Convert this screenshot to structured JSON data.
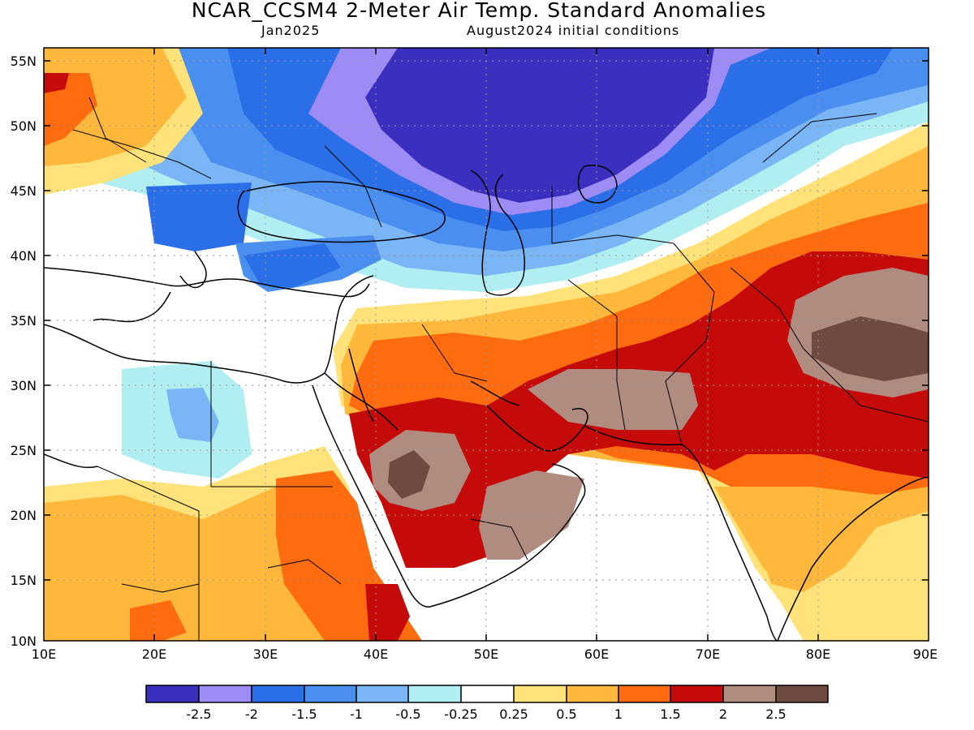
{
  "title": "NCAR_CCSM4 2-Meter Air Temp. Standard Anomalies",
  "subtitle_left": "Jan2025",
  "subtitle_right": "August2024 initial conditions",
  "lat_labels": [
    "55N",
    "50N",
    "45N",
    "40N",
    "35N",
    "30N",
    "25N",
    "20N",
    "15N",
    "10N"
  ],
  "lon_labels": [
    "10E",
    "20E",
    "30E",
    "40E",
    "50E",
    "60E",
    "70E",
    "80E",
    "90E"
  ],
  "colors": {
    "c1": "#3b2fbf",
    "c2": "#9d8cf5",
    "c3": "#2b6fe8",
    "c4": "#4a8ff0",
    "c5": "#7ab6f5",
    "c6": "#b0eef2",
    "c7": "#ffffff",
    "c8": "#ffe37a",
    "c9": "#ffb83c",
    "c10": "#ff6b0f",
    "c11": "#c50a0a",
    "c12": "#b08b80",
    "c13": "#6e4a40"
  },
  "colorbar_labels": [
    "-2.5",
    "-2",
    "-1.5",
    "-1",
    "-0.5",
    "-0.25",
    "0.25",
    "0.5",
    "1",
    "1.5",
    "2",
    "2.5"
  ]
}
